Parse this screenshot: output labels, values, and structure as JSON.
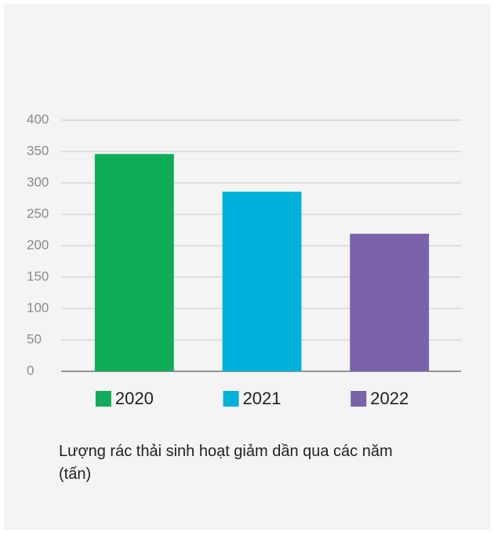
{
  "chart_data": {
    "type": "bar",
    "title": "Lượng rác thải sinh hoạt giảm dần qua các năm (tấn)",
    "categories": [
      "2020",
      "2021",
      "2022"
    ],
    "values": [
      346,
      286,
      219
    ],
    "colors": [
      "#0fad59",
      "#00b1dc",
      "#7a62aa"
    ],
    "ylim": [
      0,
      400
    ],
    "yticks": [
      0,
      50,
      100,
      150,
      200,
      250,
      300,
      350,
      400
    ],
    "grid": true,
    "legend": "bottom"
  }
}
